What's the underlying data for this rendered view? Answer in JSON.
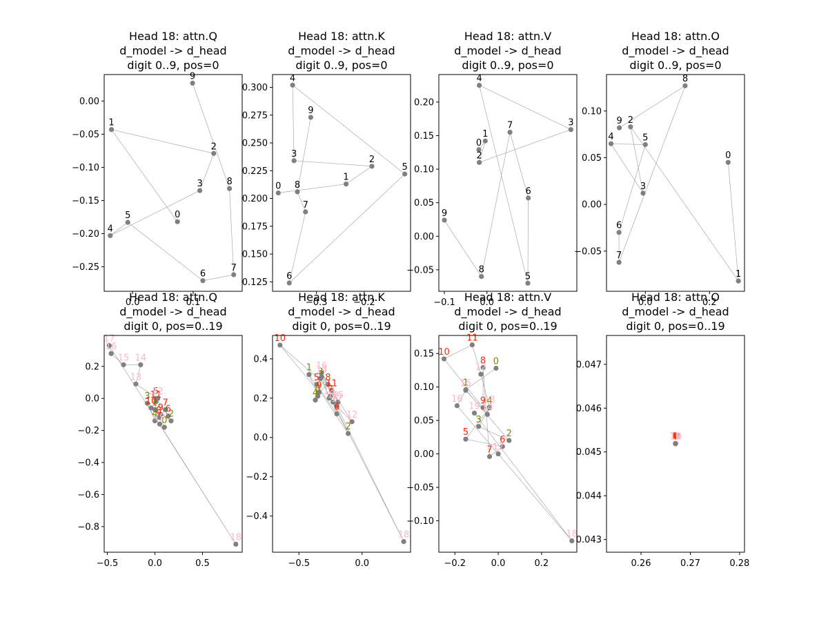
{
  "figure": {
    "background": "#ffffff"
  },
  "style": {
    "point_color": "#808080",
    "line_color": "#a9a9a9",
    "label_color_default": "#000000",
    "label_color_0_4": "#808000",
    "label_color_5_11": "#ff2400",
    "label_color_12_19": "#ffb6c1"
  },
  "chart_data": [
    {
      "type": "scatter",
      "title": "Head 18: attn.Q\nd_model -> d_head\ndigit 0..9, pos=0",
      "xlim": [
        -0.047,
        0.181
      ],
      "ylim": [
        -0.287,
        0.04
      ],
      "xticks": [
        0.0,
        0.1
      ],
      "xtick_labels": [
        "0.0",
        "0.1"
      ],
      "yticks": [
        0.0,
        -0.05,
        -0.1,
        -0.15,
        -0.2,
        -0.25
      ],
      "ytick_labels": [
        "0.00",
        "−0.05",
        "−0.10",
        "−0.15",
        "−0.20",
        "−0.25"
      ],
      "points": [
        {
          "label": "0",
          "x": 0.074,
          "y": -0.182
        },
        {
          "label": "1",
          "x": -0.035,
          "y": -0.043
        },
        {
          "label": "2",
          "x": 0.134,
          "y": -0.079
        },
        {
          "label": "3",
          "x": 0.111,
          "y": -0.135
        },
        {
          "label": "4",
          "x": -0.037,
          "y": -0.203
        },
        {
          "label": "5",
          "x": -0.008,
          "y": -0.183
        },
        {
          "label": "6",
          "x": 0.116,
          "y": -0.271
        },
        {
          "label": "7",
          "x": 0.167,
          "y": -0.262
        },
        {
          "label": "8",
          "x": 0.16,
          "y": -0.132
        },
        {
          "label": "9",
          "x": 0.099,
          "y": 0.027
        }
      ]
    },
    {
      "type": "scatter",
      "title": "Head 18: attn.K\nd_model -> d_head\ndigit 0..9, pos=0",
      "xlim": [
        -0.392,
        -0.103
      ],
      "ylim": [
        0.1165,
        0.3115
      ],
      "xticks": [
        -0.3,
        -0.2
      ],
      "xtick_labels": [
        "−0.3",
        "−0.2"
      ],
      "yticks": [
        0.125,
        0.15,
        0.175,
        0.2,
        0.225,
        0.25,
        0.275,
        0.3
      ],
      "ytick_labels": [
        "0.125",
        "0.150",
        "0.175",
        "0.200",
        "0.225",
        "0.250",
        "0.275",
        "0.300"
      ],
      "points": [
        {
          "label": "0",
          "x": -0.38,
          "y": 0.205
        },
        {
          "label": "1",
          "x": -0.238,
          "y": 0.213
        },
        {
          "label": "2",
          "x": -0.184,
          "y": 0.229
        },
        {
          "label": "3",
          "x": -0.347,
          "y": 0.234
        },
        {
          "label": "4",
          "x": -0.35,
          "y": 0.302
        },
        {
          "label": "5",
          "x": -0.115,
          "y": 0.222
        },
        {
          "label": "6",
          "x": -0.357,
          "y": 0.124
        },
        {
          "label": "7",
          "x": -0.323,
          "y": 0.188
        },
        {
          "label": "8",
          "x": -0.34,
          "y": 0.206
        },
        {
          "label": "9",
          "x": -0.312,
          "y": 0.273
        }
      ]
    },
    {
      "type": "scatter",
      "title": "Head 18: attn.V\nd_model -> d_head\ndigit 0..9, pos=0",
      "xlim": [
        -0.113,
        0.211
      ],
      "ylim": [
        -0.082,
        0.241
      ],
      "xticks": [
        -0.1,
        0.0
      ],
      "xtick_labels": [
        "−0.1",
        "0.0"
      ],
      "yticks": [
        -0.05,
        0.0,
        0.05,
        0.1,
        0.15,
        0.2
      ],
      "ytick_labels": [
        "−0.05",
        "0.00",
        "0.05",
        "0.10",
        "0.15",
        "0.20"
      ],
      "points": [
        {
          "label": "0",
          "x": -0.019,
          "y": 0.129
        },
        {
          "label": "1",
          "x": -0.004,
          "y": 0.142
        },
        {
          "label": "2",
          "x": -0.018,
          "y": 0.11
        },
        {
          "label": "3",
          "x": 0.197,
          "y": 0.159
        },
        {
          "label": "4",
          "x": -0.018,
          "y": 0.225
        },
        {
          "label": "5",
          "x": 0.096,
          "y": -0.07
        },
        {
          "label": "6",
          "x": 0.097,
          "y": 0.057
        },
        {
          "label": "7",
          "x": 0.054,
          "y": 0.155
        },
        {
          "label": "8",
          "x": -0.013,
          "y": -0.06
        },
        {
          "label": "9",
          "x": -0.1,
          "y": 0.024
        }
      ]
    },
    {
      "type": "scatter",
      "title": "Head 18: attn.O\nd_model -> d_head\ndigit 0..9, pos=0",
      "xlim": [
        -0.121,
        0.309
      ],
      "ylim": [
        -0.093,
        0.139
      ],
      "xticks": [
        0.0,
        0.2
      ],
      "xtick_labels": [
        "0.0",
        "0.2"
      ],
      "yticks": [
        -0.05,
        0.0,
        0.05,
        0.1
      ],
      "ytick_labels": [
        "−0.05",
        "0.00",
        "0.05",
        "0.10"
      ],
      "points": [
        {
          "label": "0",
          "x": 0.258,
          "y": 0.045
        },
        {
          "label": "1",
          "x": 0.29,
          "y": -0.082
        },
        {
          "label": "2",
          "x": -0.046,
          "y": 0.083
        },
        {
          "label": "3",
          "x": -0.007,
          "y": 0.012
        },
        {
          "label": "4",
          "x": -0.107,
          "y": 0.065
        },
        {
          "label": "5",
          "x": 0.0,
          "y": 0.064
        },
        {
          "label": "6",
          "x": -0.082,
          "y": -0.03
        },
        {
          "label": "7",
          "x": -0.082,
          "y": -0.062
        },
        {
          "label": "8",
          "x": 0.124,
          "y": 0.127
        },
        {
          "label": "9",
          "x": -0.081,
          "y": 0.082
        }
      ]
    },
    {
      "type": "scatter",
      "title": "Head 18: attn.Q\nd_model -> d_head\ndigit 0, pos=0..19",
      "xlim": [
        -0.533,
        0.917
      ],
      "ylim": [
        -0.96,
        0.393
      ],
      "xticks": [
        -0.5,
        0.0,
        0.5
      ],
      "xtick_labels": [
        "−0.5",
        "0.0",
        "0.5"
      ],
      "yticks": [
        -0.8,
        -0.6,
        -0.4,
        -0.2,
        0.0,
        0.2
      ],
      "ytick_labels": [
        "−0.8",
        "−0.6",
        "−0.4",
        "−0.2",
        "0.0",
        "0.2"
      ],
      "points": [
        {
          "label": "0",
          "x": 0.1,
          "y": -0.18
        },
        {
          "label": "1",
          "x": 0.0,
          "y": -0.07
        },
        {
          "label": "2",
          "x": 0.17,
          "y": -0.14
        },
        {
          "label": "3",
          "x": -0.08,
          "y": -0.03
        },
        {
          "label": "4",
          "x": 0.0,
          "y": -0.14
        },
        {
          "label": "5",
          "x": 0.01,
          "y": 0.0
        },
        {
          "label": "6",
          "x": 0.14,
          "y": -0.11
        },
        {
          "label": "7",
          "x": 0.11,
          "y": -0.07
        },
        {
          "label": "8",
          "x": 0.04,
          "y": -0.12
        },
        {
          "label": "9",
          "x": 0.06,
          "y": -0.1
        },
        {
          "label": "10",
          "x": -0.04,
          "y": -0.06
        },
        {
          "label": "11",
          "x": 0.01,
          "y": -0.02
        },
        {
          "label": "12",
          "x": 0.03,
          "y": 0.0
        },
        {
          "label": "13",
          "x": -0.2,
          "y": 0.09
        },
        {
          "label": "14",
          "x": -0.15,
          "y": 0.21
        },
        {
          "label": "15",
          "x": -0.33,
          "y": 0.21
        },
        {
          "label": "16",
          "x": -0.46,
          "y": 0.28
        },
        {
          "label": "17",
          "x": -0.48,
          "y": 0.33
        },
        {
          "label": "18",
          "x": 0.85,
          "y": -0.91
        },
        {
          "label": "19",
          "x": 0.05,
          "y": -0.16
        }
      ]
    },
    {
      "type": "scatter",
      "title": "Head 18: attn.K\nd_model -> d_head\ndigit 0, pos=0..19",
      "xlim": [
        -0.709,
        0.384
      ],
      "ylim": [
        -0.584,
        0.519
      ],
      "xticks": [
        -0.5,
        0.0
      ],
      "xtick_labels": [
        "−0.5",
        "0.0"
      ],
      "yticks": [
        -0.4,
        -0.2,
        0.0,
        0.2,
        0.4
      ],
      "ytick_labels": [
        "−0.4",
        "−0.2",
        "0.0",
        "0.2",
        "0.4"
      ],
      "points": [
        {
          "label": "0",
          "x": -0.35,
          "y": 0.21
        },
        {
          "label": "1",
          "x": -0.42,
          "y": 0.32
        },
        {
          "label": "2",
          "x": -0.11,
          "y": 0.02
        },
        {
          "label": "3",
          "x": -0.33,
          "y": 0.3
        },
        {
          "label": "4",
          "x": -0.37,
          "y": 0.19
        },
        {
          "label": "5",
          "x": -0.36,
          "y": 0.27
        },
        {
          "label": "6",
          "x": -0.2,
          "y": 0.12
        },
        {
          "label": "7",
          "x": -0.25,
          "y": 0.21
        },
        {
          "label": "8",
          "x": -0.27,
          "y": 0.27
        },
        {
          "label": "9",
          "x": -0.34,
          "y": 0.23
        },
        {
          "label": "10",
          "x": -0.65,
          "y": 0.47
        },
        {
          "label": "11",
          "x": -0.24,
          "y": 0.24
        },
        {
          "label": "12",
          "x": -0.08,
          "y": 0.08
        },
        {
          "label": "13",
          "x": -0.26,
          "y": 0.2
        },
        {
          "label": "14",
          "x": -0.32,
          "y": 0.31
        },
        {
          "label": "15",
          "x": -0.19,
          "y": 0.18
        },
        {
          "label": "16",
          "x": -0.32,
          "y": 0.33
        },
        {
          "label": "17",
          "x": -0.2,
          "y": 0.16
        },
        {
          "label": "18",
          "x": 0.33,
          "y": -0.53
        },
        {
          "label": "19",
          "x": -0.23,
          "y": 0.18
        }
      ]
    },
    {
      "type": "scatter",
      "title": "Head 18: attn.V\nd_model -> d_head\ndigit 0, pos=0..19",
      "xlim": [
        -0.274,
        0.363
      ],
      "ylim": [
        -0.147,
        0.177
      ],
      "xticks": [
        -0.2,
        0.0,
        0.2
      ],
      "xtick_labels": [
        "−0.2",
        "0.0",
        "0.2"
      ],
      "yticks": [
        -0.1,
        -0.05,
        0.0,
        0.05,
        0.1,
        0.15
      ],
      "ytick_labels": [
        "−0.10",
        "−0.05",
        "0.00",
        "0.05",
        "0.10",
        "0.15"
      ],
      "points": [
        {
          "label": "0",
          "x": -0.01,
          "y": 0.128
        },
        {
          "label": "1",
          "x": -0.15,
          "y": 0.096
        },
        {
          "label": "2",
          "x": 0.05,
          "y": 0.02
        },
        {
          "label": "3",
          "x": -0.09,
          "y": 0.041
        },
        {
          "label": "4",
          "x": -0.04,
          "y": 0.069
        },
        {
          "label": "5",
          "x": -0.15,
          "y": 0.022
        },
        {
          "label": "6",
          "x": 0.02,
          "y": 0.011
        },
        {
          "label": "7",
          "x": -0.04,
          "y": -0.004
        },
        {
          "label": "8",
          "x": -0.07,
          "y": 0.129
        },
        {
          "label": "9",
          "x": -0.07,
          "y": 0.069
        },
        {
          "label": "10",
          "x": -0.25,
          "y": 0.142
        },
        {
          "label": "11",
          "x": -0.12,
          "y": 0.163
        },
        {
          "label": "12",
          "x": -0.08,
          "y": 0.119
        },
        {
          "label": "13",
          "x": -0.04,
          "y": 0.07
        },
        {
          "label": "14",
          "x": -0.05,
          "y": 0.059
        },
        {
          "label": "15",
          "x": -0.15,
          "y": 0.095
        },
        {
          "label": "16",
          "x": -0.19,
          "y": 0.072
        },
        {
          "label": "17",
          "x": 0.0,
          "y": 0.0
        },
        {
          "label": "18",
          "x": 0.34,
          "y": -0.13
        },
        {
          "label": "19",
          "x": -0.11,
          "y": 0.061
        }
      ]
    },
    {
      "type": "scatter",
      "title": "Head 18: attn.O\nd_model -> d_head\ndigit 0, pos=0..19",
      "xlim": [
        0.253,
        0.281
      ],
      "ylim": [
        0.04271,
        0.04766
      ],
      "xticks": [
        0.26,
        0.27,
        0.28
      ],
      "xtick_labels": [
        "0.26",
        "0.27",
        "0.28"
      ],
      "yticks": [
        0.043,
        0.044,
        0.045,
        0.046,
        0.047
      ],
      "ytick_labels": [
        "0.043",
        "0.044",
        "0.045",
        "0.046",
        "0.047"
      ],
      "points": [
        {
          "label": "0",
          "x": 0.267,
          "y": 0.04519
        },
        {
          "label": "1",
          "x": 0.267,
          "y": 0.04519
        },
        {
          "label": "2",
          "x": 0.267,
          "y": 0.04519
        },
        {
          "label": "3",
          "x": 0.267,
          "y": 0.04519
        },
        {
          "label": "4",
          "x": 0.267,
          "y": 0.04519
        },
        {
          "label": "5",
          "x": 0.267,
          "y": 0.04519
        },
        {
          "label": "6",
          "x": 0.267,
          "y": 0.04519
        },
        {
          "label": "7",
          "x": 0.267,
          "y": 0.04519
        },
        {
          "label": "8",
          "x": 0.267,
          "y": 0.04519
        },
        {
          "label": "9",
          "x": 0.267,
          "y": 0.04519
        },
        {
          "label": "10",
          "x": 0.267,
          "y": 0.04519
        },
        {
          "label": "11",
          "x": 0.267,
          "y": 0.04519
        },
        {
          "label": "12",
          "x": 0.267,
          "y": 0.04519
        },
        {
          "label": "13",
          "x": 0.267,
          "y": 0.04519
        },
        {
          "label": "14",
          "x": 0.267,
          "y": 0.04519
        },
        {
          "label": "15",
          "x": 0.267,
          "y": 0.04519
        },
        {
          "label": "16",
          "x": 0.267,
          "y": 0.04519
        },
        {
          "label": "17",
          "x": 0.267,
          "y": 0.04519
        },
        {
          "label": "18",
          "x": 0.267,
          "y": 0.04519
        },
        {
          "label": "19",
          "x": 0.267,
          "y": 0.04519
        }
      ]
    }
  ]
}
